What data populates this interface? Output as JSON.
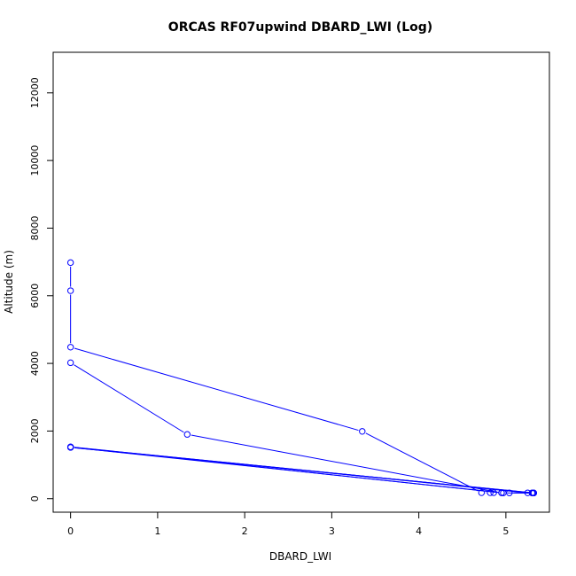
{
  "chart_data": {
    "type": "line",
    "title": "ORCAS RF07upwind DBARD_LWI (Log)",
    "xlabel": "DBARD_LWI",
    "ylabel": "Altitude (m)",
    "xlim": [
      -0.2,
      5.5
    ],
    "ylim": [
      -400,
      13200
    ],
    "x_ticks": [
      "0",
      "1",
      "2",
      "3",
      "4",
      "5"
    ],
    "y_ticks": [
      "0",
      "2000",
      "4000",
      "6000",
      "8000",
      "10000",
      "12000"
    ],
    "grid": false,
    "legend": "none",
    "color": "#0000ff",
    "markers": "open circles connected by lines",
    "series": [
      {
        "points": [
          {
            "x": 0.0,
            "y": 6980
          },
          {
            "x": 0.0,
            "y": 6150
          },
          {
            "x": 0.0,
            "y": 4480
          },
          {
            "x": 3.35,
            "y": 1990
          },
          {
            "x": 4.72,
            "y": 175
          },
          {
            "x": 4.82,
            "y": 175
          },
          {
            "x": 4.86,
            "y": 175
          },
          {
            "x": 4.95,
            "y": 175
          },
          {
            "x": 5.04,
            "y": 170
          },
          {
            "x": 5.3,
            "y": 170
          },
          {
            "x": 5.31,
            "y": 165
          },
          {
            "x": 0.0,
            "y": 1530
          },
          {
            "x": 0.0,
            "y": 1520
          },
          {
            "x": 4.97,
            "y": 170
          },
          {
            "x": 5.32,
            "y": 168
          },
          {
            "x": 0.0,
            "y": 1525
          },
          {
            "x": 0.0,
            "y": 1520
          },
          {
            "x": 5.25,
            "y": 172
          },
          {
            "x": 5.32,
            "y": 170
          },
          {
            "x": 0.0,
            "y": 1515
          },
          {
            "x": 0.0,
            "y": 1530
          },
          {
            "x": 4.95,
            "y": 172
          },
          {
            "x": 1.34,
            "y": 1900
          },
          {
            "x": 0.0,
            "y": 4020
          }
        ]
      }
    ]
  }
}
